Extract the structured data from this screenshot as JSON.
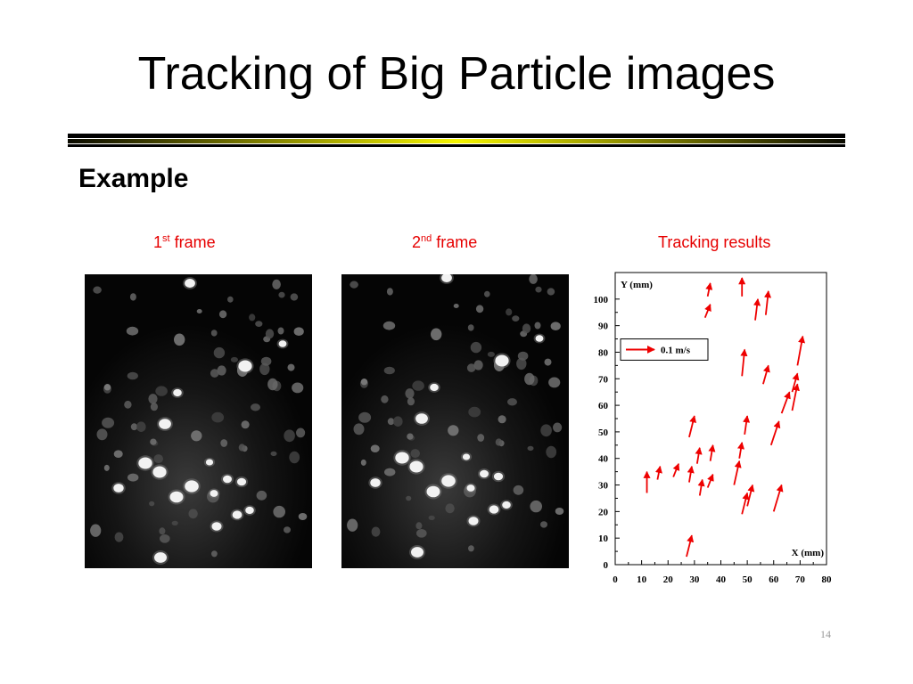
{
  "slide": {
    "title": "Tracking of Big Particle images",
    "subtitle": "Example",
    "page_number": "14"
  },
  "captions": {
    "frame1": {
      "num": "1",
      "sup": "st",
      "text": " frame"
    },
    "frame2": {
      "num": "2",
      "sup": "nd",
      "text": " frame"
    },
    "results": "Tracking results"
  },
  "colors": {
    "accent_rule": "#f5f500",
    "caption_red": "#e60000",
    "vector_red": "#ee0000"
  },
  "chart_data": {
    "type": "vector-field",
    "xlabel": "X (mm)",
    "ylabel": "Y (mm)",
    "xlim": [
      0,
      80
    ],
    "ylim": [
      0,
      110
    ],
    "xticks": [
      0,
      10,
      20,
      30,
      40,
      50,
      60,
      70,
      80
    ],
    "yticks": [
      0,
      10,
      20,
      30,
      40,
      50,
      60,
      70,
      80,
      90,
      100
    ],
    "legend": {
      "label": "0.1 m/s",
      "position": "top-left"
    },
    "vectors": [
      [
        12,
        27,
        12,
        35
      ],
      [
        16,
        32,
        17,
        37
      ],
      [
        22,
        33,
        24,
        38
      ],
      [
        28,
        31,
        29,
        37
      ],
      [
        32,
        26,
        33,
        32
      ],
      [
        31,
        38,
        32,
        44
      ],
      [
        35,
        29,
        37,
        34
      ],
      [
        36,
        39,
        37,
        45
      ],
      [
        28,
        48,
        30,
        56
      ],
      [
        27,
        3,
        29,
        11
      ],
      [
        45,
        30,
        47,
        39
      ],
      [
        47,
        40,
        48,
        46
      ],
      [
        48,
        19,
        50,
        27
      ],
      [
        50,
        22,
        52,
        30
      ],
      [
        60,
        20,
        63,
        30
      ],
      [
        59,
        45,
        62,
        54
      ],
      [
        49,
        49,
        50,
        56
      ],
      [
        63,
        57,
        66,
        65
      ],
      [
        67,
        58,
        69,
        68
      ],
      [
        69,
        75,
        71,
        86
      ],
      [
        67,
        65,
        69,
        72
      ],
      [
        56,
        68,
        58,
        75
      ],
      [
        48,
        71,
        49,
        81
      ],
      [
        34,
        93,
        36,
        98
      ],
      [
        35,
        101,
        36,
        106
      ],
      [
        48,
        101,
        48,
        108
      ],
      [
        53,
        92,
        54,
        100
      ],
      [
        57,
        94,
        58,
        103
      ]
    ]
  }
}
